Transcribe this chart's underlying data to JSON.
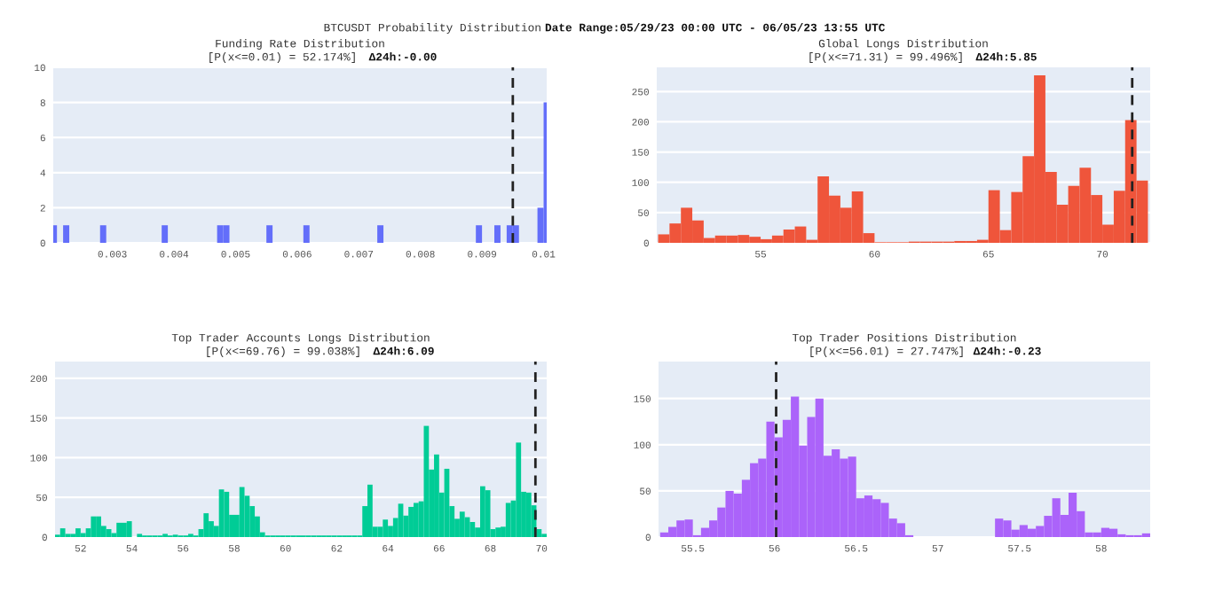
{
  "chart_data": [
    {
      "type": "histogram",
      "title": "Funding Rate Distribution",
      "subtitle": "[P(x<=0.01) = 52.174%]",
      "annotations": [
        "Δ24h:-0.00",
        "BTCUSDT Probability Distribution",
        "Date Range:05/29/23 00:00 UTC - 06/05/23 13:55 UTC"
      ],
      "color": "#636efa",
      "bins": [
        0.002,
        0.0021,
        0.0022,
        0.0023,
        0.0024,
        0.0025,
        0.0026,
        0.0027,
        0.0028,
        0.0029,
        0.003,
        0.0031,
        0.0032,
        0.0033,
        0.0034,
        0.0035,
        0.0036,
        0.0037,
        0.0038,
        0.0039,
        0.004,
        0.0041,
        0.0042,
        0.0043,
        0.0044,
        0.0045,
        0.0046,
        0.0047,
        0.0048,
        0.0049,
        0.005,
        0.0051,
        0.0052,
        0.0053,
        0.0054,
        0.0055,
        0.0056,
        0.0057,
        0.0058,
        0.0059,
        0.006,
        0.0061,
        0.0062,
        0.0063,
        0.0064,
        0.0065,
        0.0066,
        0.0067,
        0.0068,
        0.0069,
        0.007,
        0.0071,
        0.0072,
        0.0073,
        0.0074,
        0.0075,
        0.0076,
        0.0077,
        0.0078,
        0.0079,
        0.008,
        0.0081,
        0.0082,
        0.0083,
        0.0084,
        0.0085,
        0.0086,
        0.0087,
        0.0088,
        0.0089,
        0.009,
        0.0091,
        0.0092,
        0.0093,
        0.0094,
        0.0095,
        0.0096,
        0.0097,
        0.0098,
        0.0099,
        0.01,
        0.0101
      ],
      "values": [
        1,
        0,
        1,
        0,
        0,
        0,
        0,
        0,
        1,
        0,
        0,
        0,
        0,
        0,
        0,
        0,
        0,
        0,
        1,
        0,
        0,
        0,
        0,
        0,
        0,
        0,
        0,
        1,
        1,
        0,
        0,
        0,
        0,
        0,
        0,
        1,
        0,
        0,
        0,
        0,
        0,
        1,
        0,
        0,
        0,
        0,
        0,
        0,
        0,
        0,
        0,
        0,
        0,
        1,
        0,
        0,
        0,
        0,
        0,
        0,
        0,
        0,
        0,
        0,
        0,
        0,
        0,
        0,
        0,
        1,
        0,
        0,
        1,
        0,
        1,
        1,
        0,
        0,
        0,
        2,
        8
      ],
      "xlim": [
        0.00204,
        0.01005
      ],
      "ylim": [
        0,
        10
      ],
      "xticks": [
        0.003,
        0.004,
        0.005,
        0.006,
        0.007,
        0.008,
        0.009,
        0.01
      ],
      "yticks": [
        0,
        2,
        4,
        6,
        8,
        10
      ],
      "grid": "y",
      "ref_lines": [
        {
          "axis": "x",
          "value": 0.0095,
          "color": "#222222",
          "line_style": "dashed"
        }
      ]
    },
    {
      "type": "histogram",
      "title": "Global Longs Distribution",
      "subtitle": "[P(x<=71.31) = 99.496%]",
      "annotations": [
        "Δ24h:5.85"
      ],
      "color": "#ef553b",
      "bins": [
        50.5,
        51,
        51.5,
        52,
        52.5,
        53,
        53.5,
        54,
        54.5,
        55,
        55.5,
        56,
        56.5,
        57,
        57.5,
        58,
        58.5,
        59,
        59.5,
        60,
        60.5,
        61,
        61.5,
        62,
        62.5,
        63,
        63.5,
        64,
        64.5,
        65,
        65.5,
        66,
        66.5,
        67,
        67.5,
        68,
        68.5,
        69,
        69.5,
        70,
        70.5,
        71,
        71.5,
        72
      ],
      "values": [
        14,
        32,
        58,
        37,
        8,
        12,
        12,
        13,
        10,
        6,
        12,
        22,
        27,
        5,
        110,
        78,
        58,
        85,
        16,
        1,
        1,
        1,
        2,
        2,
        2,
        2,
        3,
        3,
        5,
        87,
        21,
        84,
        143,
        277,
        117,
        63,
        94,
        124,
        79,
        30,
        86,
        203,
        103
      ],
      "xlim": [
        50.44,
        72.1
      ],
      "ylim": [
        0,
        290
      ],
      "xticks": [
        55,
        60,
        65,
        70
      ],
      "yticks": [
        0,
        50,
        100,
        150,
        200,
        250
      ],
      "grid": "y",
      "ref_lines": [
        {
          "axis": "x",
          "value": 71.31,
          "color": "#222222",
          "line_style": "dashed"
        }
      ]
    },
    {
      "type": "histogram",
      "title": "Top Trader Accounts Longs Distribution",
      "subtitle": "[P(x<=69.76) = 99.038%]",
      "annotations": [
        "Δ24h:6.09"
      ],
      "color": "#00cc96",
      "bins": [
        51.0,
        51.2,
        51.4,
        51.6,
        51.8,
        52.0,
        52.2,
        52.4,
        52.6,
        52.8,
        53.0,
        53.2,
        53.4,
        53.6,
        53.8,
        54.0,
        54.2,
        54.4,
        54.6,
        54.8,
        55.0,
        55.2,
        55.4,
        55.6,
        55.8,
        56.0,
        56.2,
        56.4,
        56.6,
        56.8,
        57.0,
        57.2,
        57.4,
        57.6,
        57.8,
        58.0,
        58.2,
        58.4,
        58.6,
        58.8,
        59.0,
        59.2,
        59.4,
        59.6,
        59.8,
        60.0,
        60.2,
        60.4,
        60.6,
        60.8,
        61.0,
        61.2,
        61.4,
        61.6,
        61.8,
        62.0,
        62.2,
        62.4,
        62.6,
        62.8,
        63.0,
        63.2,
        63.4,
        63.6,
        63.8,
        64.0,
        64.2,
        64.4,
        64.6,
        64.8,
        65.0,
        65.2,
        65.4,
        65.6,
        65.8,
        66.0,
        66.2,
        66.4,
        66.6,
        66.8,
        67.0,
        67.2,
        67.4,
        67.6,
        67.8,
        68.0,
        68.2,
        68.4,
        68.6,
        68.8,
        69.0,
        69.2,
        69.4,
        69.6,
        69.8,
        70.0,
        70.2
      ],
      "values": [
        3,
        11,
        4,
        4,
        11,
        5,
        11,
        26,
        26,
        14,
        10,
        5,
        18,
        18,
        20,
        0,
        4,
        2,
        2,
        2,
        2,
        4,
        2,
        3,
        2,
        2,
        4,
        2,
        10,
        30,
        20,
        14,
        60,
        57,
        28,
        28,
        63,
        52,
        39,
        26,
        6,
        2,
        2,
        2,
        2,
        2,
        2,
        2,
        2,
        2,
        2,
        2,
        2,
        2,
        2,
        2,
        2,
        2,
        2,
        2,
        39,
        66,
        13,
        13,
        22,
        14,
        24,
        42,
        27,
        38,
        43,
        45,
        140,
        85,
        104,
        56,
        86,
        39,
        23,
        32,
        25,
        19,
        12,
        64,
        59,
        10,
        12,
        13,
        43,
        46,
        119,
        57,
        56,
        40,
        10,
        4
      ],
      "xlim": [
        51.0,
        70.2
      ],
      "ylim": [
        0,
        221
      ],
      "xticks": [
        52,
        54,
        56,
        58,
        60,
        62,
        64,
        66,
        68,
        70
      ],
      "yticks": [
        0,
        50,
        100,
        150,
        200
      ],
      "grid": "y",
      "ref_lines": [
        {
          "axis": "x",
          "value": 69.76,
          "color": "#222222",
          "line_style": "dashed"
        }
      ]
    },
    {
      "type": "histogram",
      "title": "Top Trader Positions Distribution",
      "subtitle": "[P(x<=56.01) = 27.747%]",
      "annotations": [
        "Δ24h:-0.23"
      ],
      "color": "#ab63fa",
      "bins": [
        55.3,
        55.35,
        55.4,
        55.45,
        55.5,
        55.55,
        55.6,
        55.65,
        55.7,
        55.75,
        55.8,
        55.85,
        55.9,
        55.95,
        56.0,
        56.05,
        56.1,
        56.15,
        56.2,
        56.25,
        56.3,
        56.35,
        56.4,
        56.45,
        56.5,
        56.55,
        56.6,
        56.65,
        56.7,
        56.75,
        56.8,
        56.85,
        56.9,
        56.95,
        57.0,
        57.05,
        57.1,
        57.15,
        57.2,
        57.25,
        57.3,
        57.35,
        57.4,
        57.45,
        57.5,
        57.55,
        57.6,
        57.65,
        57.7,
        57.75,
        57.8,
        57.85,
        57.9,
        57.95,
        58.0,
        58.05,
        58.1,
        58.15,
        58.2,
        58.25,
        58.3
      ],
      "values": [
        5,
        11,
        18,
        19,
        2,
        10,
        18,
        32,
        50,
        47,
        62,
        80,
        85,
        125,
        108,
        127,
        152,
        99,
        130,
        150,
        88,
        95,
        85,
        87,
        42,
        45,
        41,
        37,
        20,
        15,
        2,
        0,
        0,
        0,
        0,
        0,
        0,
        0,
        0,
        0,
        0,
        20,
        18,
        8,
        13,
        9,
        12,
        23,
        42,
        24,
        48,
        28,
        5,
        5,
        10,
        9,
        3,
        2,
        2,
        4
      ],
      "xlim": [
        55.29,
        58.3
      ],
      "ylim": [
        0,
        190
      ],
      "xticks": [
        55.5,
        56,
        56.5,
        57,
        57.5,
        58
      ],
      "yticks": [
        0,
        50,
        100,
        150
      ],
      "grid": "y",
      "ref_lines": [
        {
          "axis": "x",
          "value": 56.01,
          "color": "#222222",
          "line_style": "dashed"
        }
      ]
    }
  ]
}
